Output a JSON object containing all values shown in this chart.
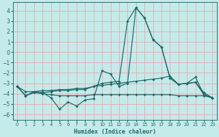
{
  "xlabel": "Humidex (Indice chaleur)",
  "xlim": [
    -0.5,
    23.5
  ],
  "ylim": [
    -6.5,
    4.8
  ],
  "yticks": [
    -6,
    -5,
    -4,
    -3,
    -2,
    -1,
    0,
    1,
    2,
    3,
    4
  ],
  "xticks": [
    0,
    1,
    2,
    3,
    4,
    5,
    6,
    7,
    8,
    9,
    10,
    11,
    12,
    13,
    14,
    15,
    16,
    17,
    18,
    19,
    20,
    21,
    22,
    23
  ],
  "bg_color": "#c5eaea",
  "grid_color": "#e8a8a8",
  "line_color": "#1c6b6b",
  "y_jagged": [
    -3.3,
    -4.2,
    -3.8,
    -3.9,
    -4.4,
    -5.5,
    -4.8,
    -5.2,
    -4.6,
    -4.5,
    -1.8,
    -2.1,
    -3.3,
    -3.0,
    4.3,
    3.3,
    1.2,
    0.5,
    -2.5,
    -3.1,
    -3.0,
    -2.4,
    -4.1,
    -4.4
  ],
  "y_flat": [
    -3.3,
    -4.2,
    -3.9,
    -4.0,
    -4.1,
    -4.2,
    -4.2,
    -4.2,
    -4.2,
    -4.1,
    -4.1,
    -4.1,
    -4.1,
    -4.1,
    -4.1,
    -4.1,
    -4.1,
    -4.1,
    -4.1,
    -4.2,
    -4.2,
    -4.2,
    -4.2,
    -4.4
  ],
  "y_peak": [
    -3.3,
    -4.2,
    -3.8,
    -3.9,
    -3.8,
    -3.7,
    -3.7,
    -3.6,
    -3.6,
    -3.3,
    -3.0,
    -2.9,
    -2.8,
    3.0,
    4.3,
    3.3,
    1.2,
    0.5,
    -2.5,
    -3.1,
    -3.0,
    -2.9,
    -4.1,
    -4.4
  ],
  "y_slope": [
    -3.3,
    -3.8,
    -3.8,
    -3.7,
    -3.7,
    -3.6,
    -3.6,
    -3.5,
    -3.5,
    -3.3,
    -3.2,
    -3.1,
    -3.0,
    -2.9,
    -2.8,
    -2.7,
    -2.6,
    -2.5,
    -2.3,
    -3.1,
    -3.0,
    -2.9,
    -3.9,
    -4.4
  ]
}
